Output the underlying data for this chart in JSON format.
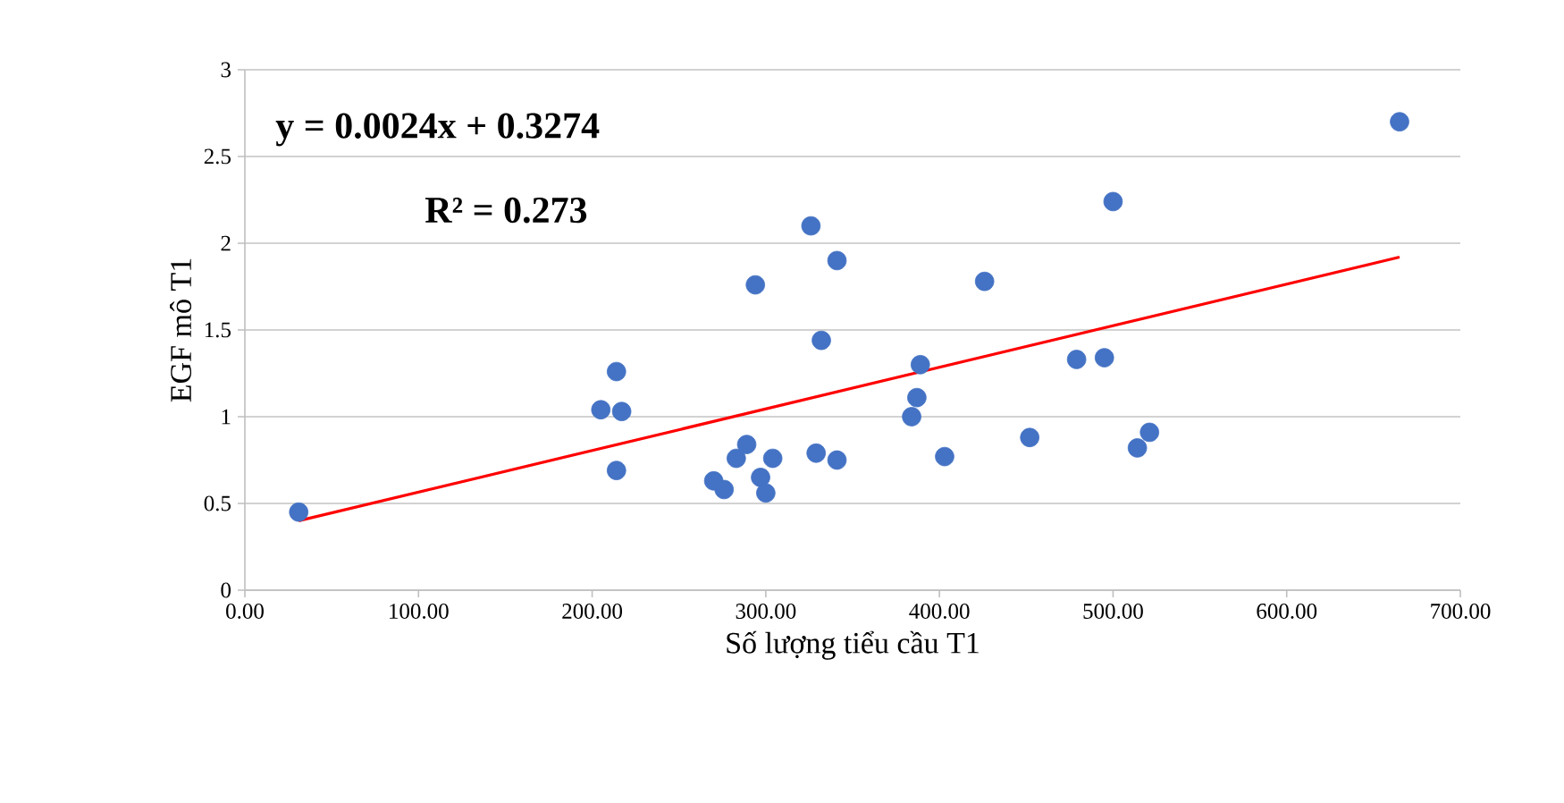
{
  "chart_data": {
    "type": "scatter",
    "xlabel": "Số lượng tiểu cầu T1",
    "ylabel": "EGF mô T1",
    "annotations": [
      "y = 0.0024x + 0.3274",
      "R² = 0.273"
    ],
    "xlim": [
      0,
      700
    ],
    "ylim": [
      0,
      3
    ],
    "xticks": [
      {
        "value": 0,
        "label": "0.00"
      },
      {
        "value": 100,
        "label": "100.00"
      },
      {
        "value": 200,
        "label": "200.00"
      },
      {
        "value": 300,
        "label": "300.00"
      },
      {
        "value": 400,
        "label": "400.00"
      },
      {
        "value": 500,
        "label": "500.00"
      },
      {
        "value": 600,
        "label": "600.00"
      },
      {
        "value": 700,
        "label": "700.00"
      }
    ],
    "yticks": [
      0,
      0.5,
      1,
      1.5,
      2,
      2.5,
      3
    ],
    "grid": "y",
    "series": [
      {
        "marker": "circle",
        "color": "#4472c4",
        "x": [
          31,
          214,
          205,
          217,
          214,
          294,
          326,
          341,
          332,
          270,
          276,
          283,
          289,
          297,
          300,
          304,
          329,
          341,
          389,
          387,
          384,
          403,
          426,
          452,
          479,
          495,
          500,
          514,
          521,
          665
        ],
        "values": [
          0.45,
          1.26,
          1.04,
          1.03,
          0.69,
          1.76,
          2.1,
          1.9,
          1.44,
          0.63,
          0.58,
          0.76,
          0.84,
          0.65,
          0.56,
          0.76,
          0.79,
          0.75,
          1.3,
          1.11,
          1.0,
          0.77,
          1.78,
          0.88,
          1.33,
          1.34,
          2.24,
          0.82,
          0.91,
          2.7
        ]
      },
      {
        "type": "line",
        "marker": "none",
        "color": "#ff0000",
        "x": [
          31,
          665
        ],
        "values": [
          0.4,
          1.92
        ]
      }
    ]
  }
}
